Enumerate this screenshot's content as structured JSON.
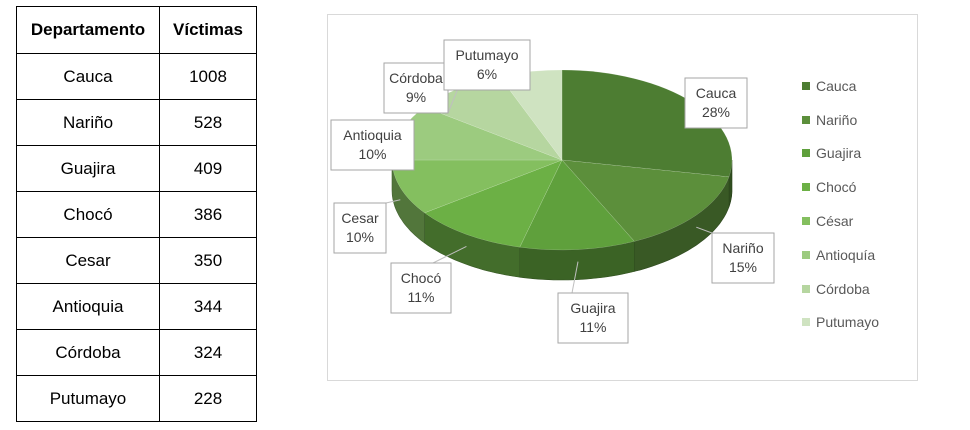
{
  "table": {
    "headers": [
      "Departamento",
      "Víctimas"
    ],
    "rows": [
      {
        "name": "Cauca",
        "value": "1008"
      },
      {
        "name": "Nariño",
        "value": "528"
      },
      {
        "name": "Guajira",
        "value": "409"
      },
      {
        "name": "Chocó",
        "value": "386"
      },
      {
        "name": "Cesar",
        "value": "350"
      },
      {
        "name": "Antioquia",
        "value": "344"
      },
      {
        "name": "Córdoba",
        "value": "324"
      },
      {
        "name": "Putumayo",
        "value": "228"
      }
    ]
  },
  "chart_data": {
    "type": "pie",
    "style": "3d-exploded-labels",
    "legend_position": "right",
    "colors": [
      "#4d7d32",
      "#5c8f3b",
      "#5fa03c",
      "#6cb045",
      "#84bf5f",
      "#9ccb7f",
      "#b6d6a0",
      "#cfe3c1"
    ],
    "slices": [
      {
        "label": "Cauca",
        "percent": "28%",
        "value": 28,
        "legend": "Cauca"
      },
      {
        "label": "Nariño",
        "percent": "15%",
        "value": 15,
        "legend": "Nariño"
      },
      {
        "label": "Guajira",
        "percent": "11%",
        "value": 11,
        "legend": "Guajira"
      },
      {
        "label": "Chocó",
        "percent": "11%",
        "value": 11,
        "legend": "Chocó"
      },
      {
        "label": "Cesar",
        "percent": "10%",
        "value": 10,
        "legend": "César"
      },
      {
        "label": "Antioquia",
        "percent": "10%",
        "value": 10,
        "legend": "Antioquía"
      },
      {
        "label": "Córdoba",
        "percent": "9%",
        "value": 9,
        "legend": "Córdoba"
      },
      {
        "label": "Putumayo",
        "percent": "6%",
        "value": 6,
        "legend": "Putumayo"
      }
    ]
  }
}
